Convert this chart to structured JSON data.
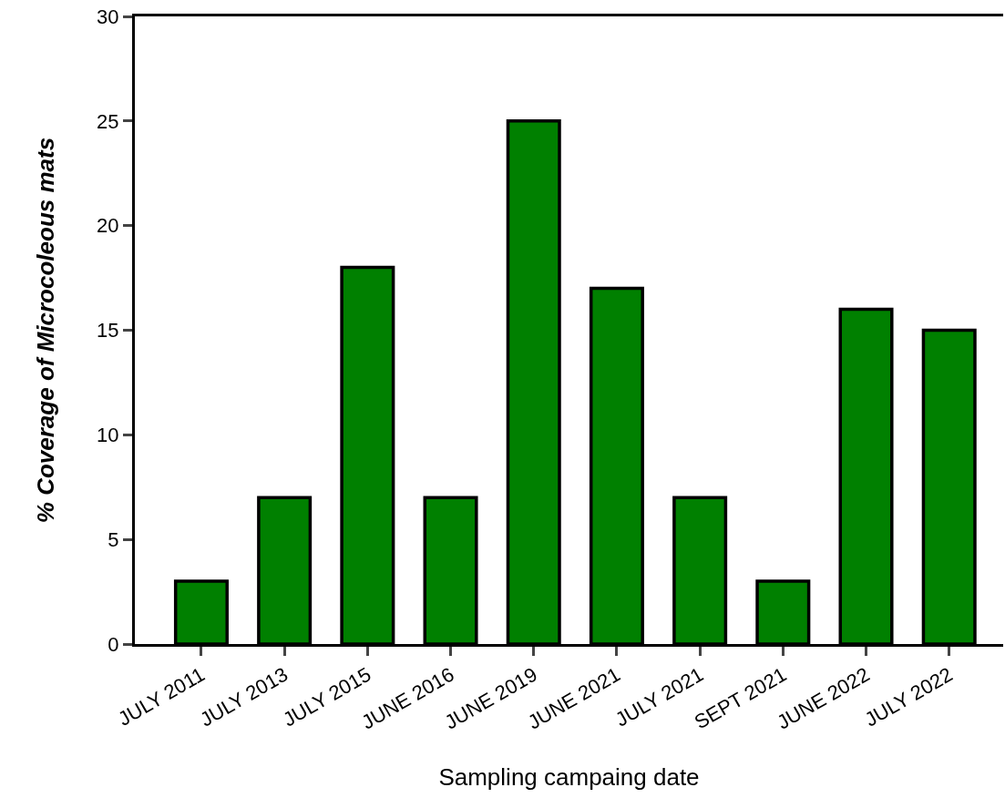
{
  "chart_data": {
    "type": "bar",
    "xlabel": "Sampling campaing date",
    "ylabel": "% Coverage of Microcoleous mats",
    "categories": [
      "JULY 2011",
      "JULY 2013",
      "JULY 2015",
      "JUNE 2016",
      "JUNE 2019",
      "JUNE 2021",
      "JULY 2021",
      "SEPT 2021",
      "JUNE 2022",
      "JULY 2022"
    ],
    "values": [
      3,
      7,
      18,
      7,
      25,
      17,
      7,
      3,
      16,
      15
    ],
    "color": "#008000",
    "ylim": [
      0,
      30
    ],
    "yticks": [
      0,
      5,
      10,
      15,
      20,
      25,
      30
    ],
    "grid": false,
    "legend": false
  }
}
